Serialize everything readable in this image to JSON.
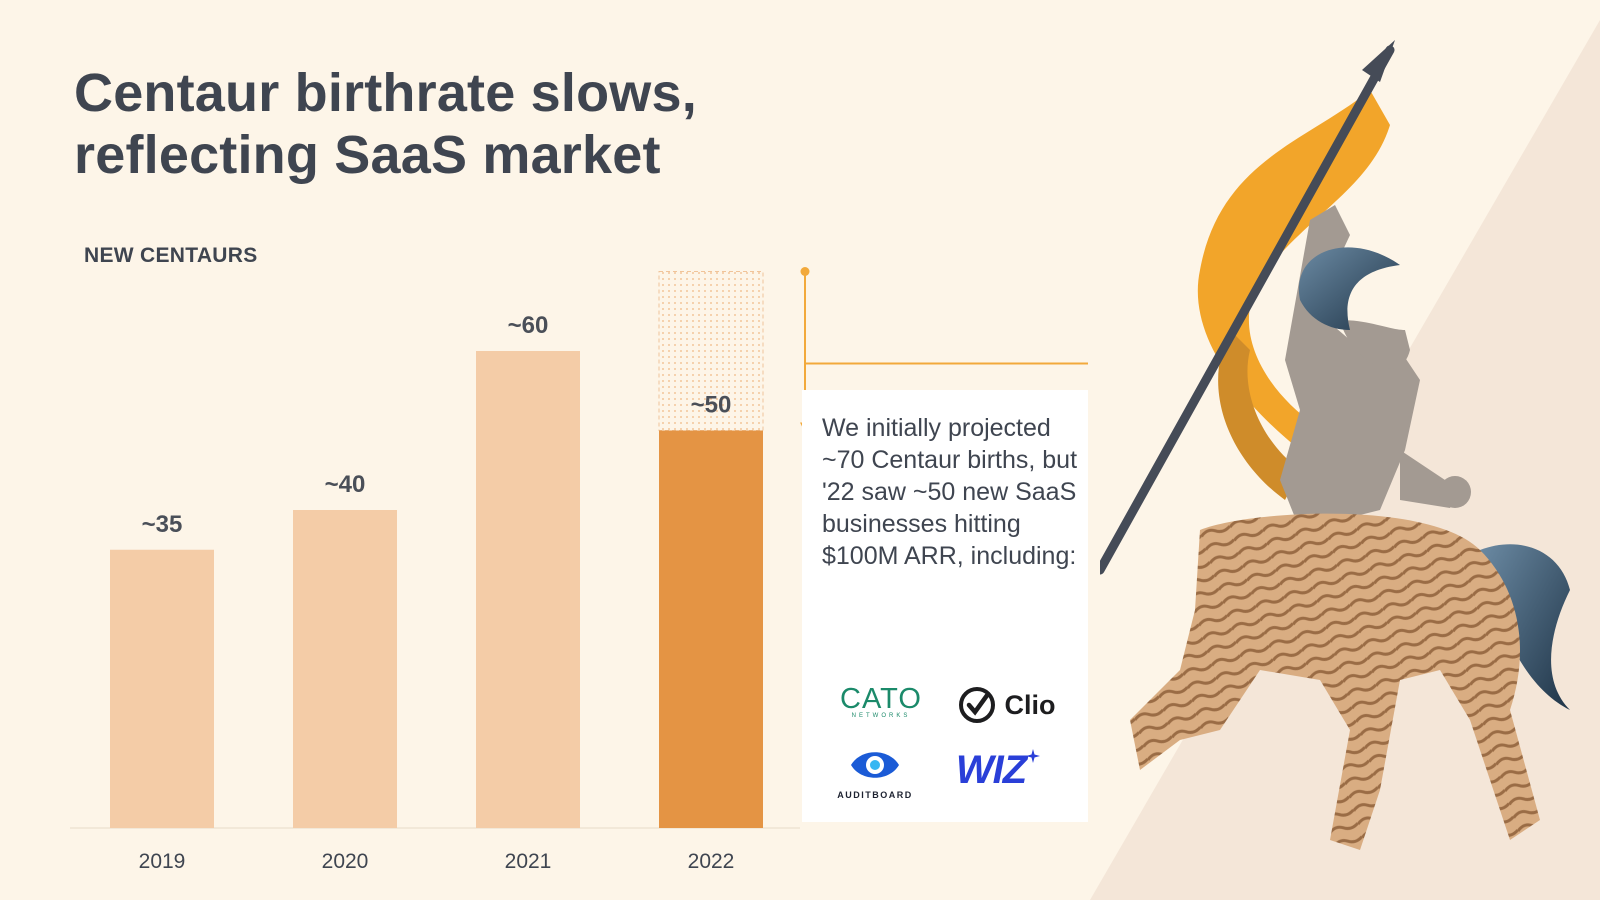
{
  "title": {
    "line1": "Centaur birthrate slows,",
    "line2": "reflecting SaaS market"
  },
  "colors": {
    "background": "#fdf5e8",
    "bar_light": "#f4cca7",
    "bar_highlight": "#e49444",
    "projection_line": "#f2a93b",
    "text_dark": "#3f4550"
  },
  "chart_data": {
    "type": "bar",
    "title": "",
    "ylabel": "NEW CENTAURS",
    "xlabel": "",
    "categories": [
      "2019",
      "2020",
      "2021",
      "2022"
    ],
    "values": [
      35,
      40,
      60,
      50
    ],
    "value_labels": [
      "~35",
      "~40",
      "~60",
      "~50"
    ],
    "highlight_category": "2022",
    "projected": {
      "category": "2022",
      "value": 70
    },
    "ylim": [
      0,
      70
    ],
    "grid": false,
    "legend": "none"
  },
  "note": {
    "text": "We initially projected ~70 Centaur births, but '22 saw ~50 new SaaS businesses hitting $100M ARR, including:"
  },
  "logos": {
    "cato": {
      "name": "CATO",
      "sub": "NETWORKS",
      "icon": "cato-networks-logo"
    },
    "clio": {
      "name": "Clio",
      "icon": "clio-check-icon"
    },
    "auditboard": {
      "name": "AUDITBOARD",
      "icon": "auditboard-eye-icon"
    },
    "wiz": {
      "name": "WIZ",
      "icon": "wiz-star-icon"
    }
  },
  "illustration": {
    "icon": "centaur-with-flag-illustration"
  }
}
